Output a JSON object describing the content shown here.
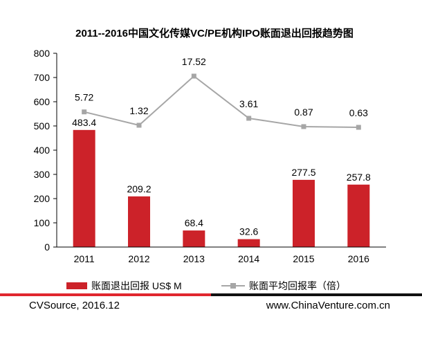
{
  "footer": {
    "source": "CVSource, 2016.12",
    "website": "www.ChinaVenture.com.cn"
  },
  "chart_data": {
    "type": "bar",
    "title": "2011--2016中国文化传媒VC/PE机构IPO账面退出回报趋势图",
    "categories": [
      "2011",
      "2012",
      "2013",
      "2014",
      "2015",
      "2016"
    ],
    "ylim": [
      0,
      800
    ],
    "yticks": [
      0,
      100,
      200,
      300,
      400,
      500,
      600,
      700,
      800
    ],
    "legend_position": "bottom",
    "series": [
      {
        "name": "账面退出回报 US$ M",
        "type": "bar",
        "axis": "left",
        "values": [
          483.4,
          209.2,
          68.4,
          32.6,
          277.5,
          257.8
        ],
        "labels": [
          "483.4",
          "209.2",
          "68.4",
          "32.6",
          "277.5",
          "257.8"
        ],
        "color": "#cc2229"
      },
      {
        "name": "账面平均回报率（倍）",
        "type": "line",
        "axis": "secondary-hidden",
        "values": [
          5.72,
          1.32,
          17.52,
          3.61,
          0.87,
          0.63
        ],
        "labels": [
          "5.72",
          "1.32",
          "17.52",
          "3.61",
          "0.87",
          "0.63"
        ],
        "color": "#a6a6a6"
      }
    ]
  }
}
